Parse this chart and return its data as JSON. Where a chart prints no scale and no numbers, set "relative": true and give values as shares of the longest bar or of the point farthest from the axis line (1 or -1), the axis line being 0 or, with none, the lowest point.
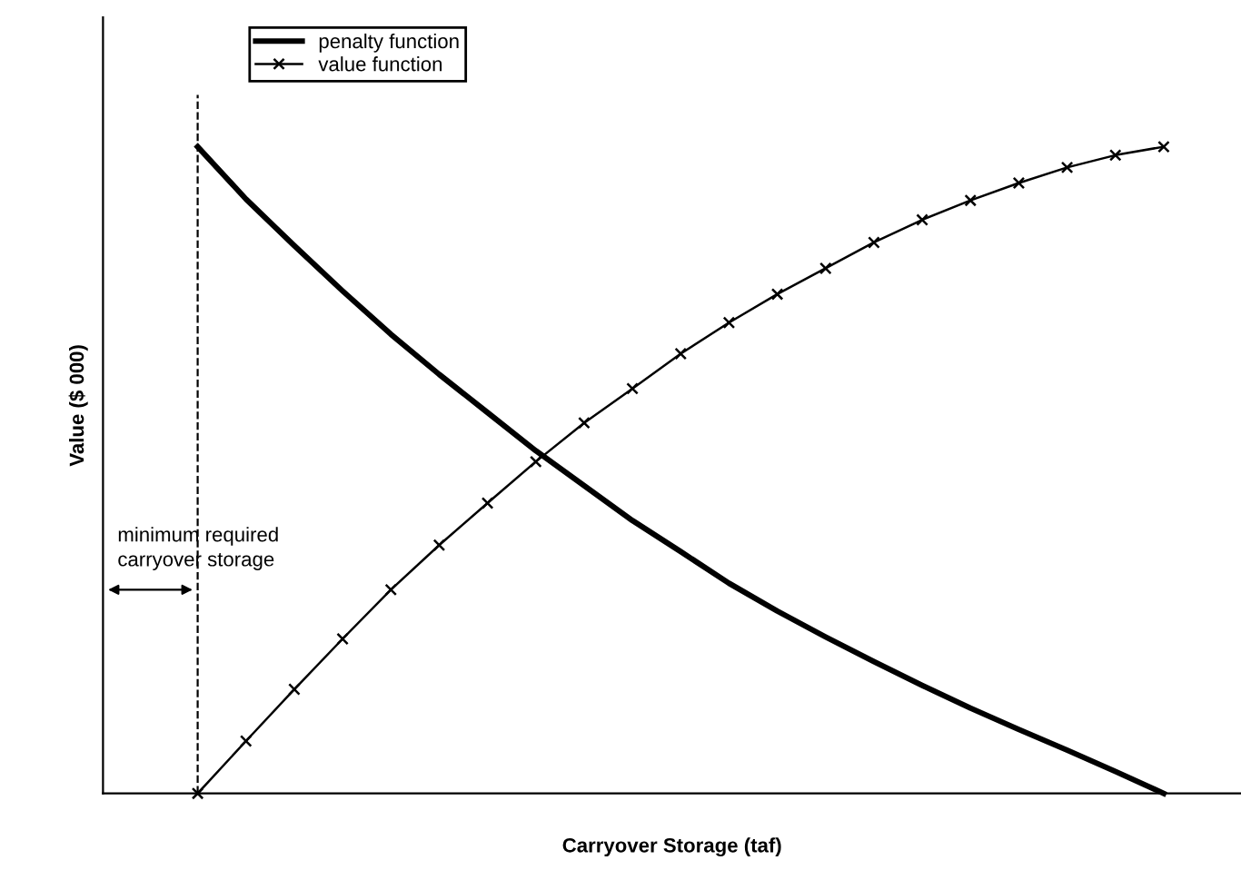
{
  "chart_data": {
    "type": "line",
    "relative": true,
    "xlabel": "Carryover Storage (taf)",
    "ylabel": "Value ($ 000)",
    "categories": [
      null,
      null,
      null,
      null,
      null,
      null,
      null,
      null,
      null,
      null,
      null,
      null,
      null,
      null,
      null,
      null,
      null,
      null,
      null,
      null,
      null
    ],
    "series": [
      {
        "name": "penalty function",
        "color": "#000000",
        "marker": "none",
        "values": [
          1,
          0.919,
          0.847,
          0.777,
          0.71,
          0.648,
          0.589,
          0.53,
          0.476,
          0.422,
          0.374,
          0.325,
          0.282,
          0.242,
          0.204,
          0.167,
          0.132,
          0.099,
          0.067,
          0.034,
          0
        ]
      },
      {
        "name": "value function",
        "color": "#000000",
        "marker": "cross",
        "values": [
          0,
          0.081,
          0.161,
          0.239,
          0.315,
          0.384,
          0.449,
          0.513,
          0.573,
          0.626,
          0.68,
          0.728,
          0.772,
          0.812,
          0.852,
          0.887,
          0.917,
          0.944,
          0.968,
          0.987,
          1
        ]
      }
    ],
    "annotations": [
      "minimum required\ncarryover storage"
    ],
    "legend": "top left",
    "grid": false,
    "line_style": "solid"
  }
}
